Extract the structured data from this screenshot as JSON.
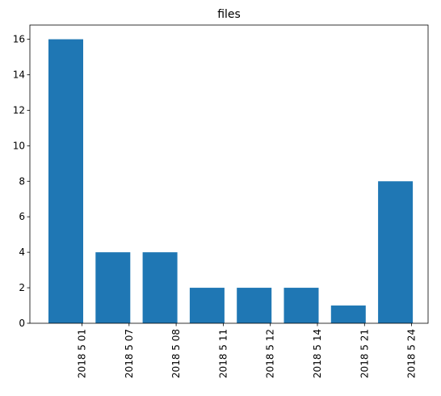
{
  "chart_data": {
    "type": "bar",
    "title": "files",
    "xlabel": "",
    "ylabel": "",
    "categories": [
      "2018 5 01",
      "2018 5 07",
      "2018 5 08",
      "2018 5 11",
      "2018 5 12",
      "2018 5 14",
      "2018 5 21",
      "2018 5 24"
    ],
    "values": [
      16,
      4,
      4,
      2,
      2,
      2,
      1,
      8
    ],
    "ylim": [
      0,
      16.8
    ],
    "yticks": [
      0,
      2,
      4,
      6,
      8,
      10,
      12,
      14,
      16
    ],
    "grid": false,
    "legend": "none",
    "bar_color": "#1f77b4",
    "xtick_rotation": 90
  }
}
